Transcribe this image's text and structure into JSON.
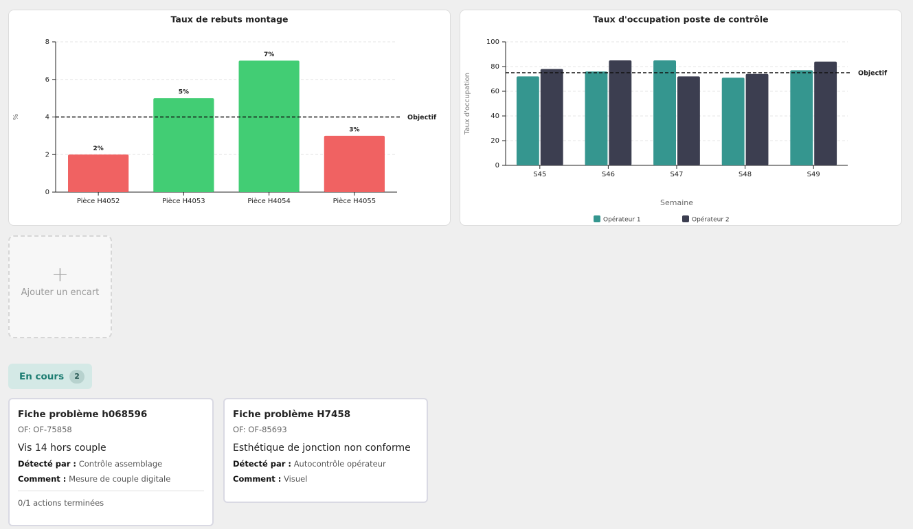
{
  "chart_data": [
    {
      "type": "bar",
      "title": "Taux de rebuts montage",
      "ylabel": "%",
      "categories": [
        "Pièce H4052",
        "Pièce H4053",
        "Pièce H4054",
        "Pièce H4055"
      ],
      "values": [
        2,
        5,
        7,
        3
      ],
      "value_labels": [
        "2%",
        "5%",
        "7%",
        "3%"
      ],
      "colors": [
        "#f06262",
        "#42cd74",
        "#42cd74",
        "#f06262"
      ],
      "ylim": [
        0,
        8
      ],
      "yticks": [
        0,
        2,
        4,
        6,
        8
      ],
      "grid": true,
      "target": {
        "value": 4,
        "label": "Objectif"
      }
    },
    {
      "type": "grouped_bar",
      "title": "Taux d'occupation poste de contrôle",
      "ylabel": "Taux d'occupation",
      "xlabel": "Semaine",
      "categories": [
        "S45",
        "S46",
        "S47",
        "S48",
        "S49"
      ],
      "series": [
        {
          "name": "Opérateur 1",
          "color": "#35968f",
          "values": [
            72,
            76,
            85,
            71,
            77
          ]
        },
        {
          "name": "Opérateur 2",
          "color": "#3c3e50",
          "values": [
            78,
            85,
            72,
            74,
            84
          ]
        }
      ],
      "ylim": [
        0,
        100
      ],
      "yticks": [
        0,
        20,
        40,
        60,
        80,
        100
      ],
      "grid": true,
      "legend": "bottom",
      "target": {
        "value": 75,
        "label": "Objectif"
      }
    }
  ],
  "add_card": {
    "label": "Ajouter un encart"
  },
  "section": {
    "title": "En cours",
    "count": 2
  },
  "cards": [
    {
      "title": "Fiche problème h068596",
      "of": "OF: OF-75858",
      "description": "Vis 14 hors couple",
      "detected_label": "Détecté par :",
      "detected": "Contrôle assemblage",
      "comment_label": "Comment :",
      "comment": "Mesure de couple digitale",
      "footer": "0/1 actions terminées"
    },
    {
      "title": "Fiche problème H7458",
      "of": "OF: OF-85693",
      "description": "Esthétique de jonction non conforme",
      "detected_label": "Détecté par :",
      "detected": "Autocontrôle opérateur",
      "comment_label": "Comment :",
      "comment": "Visuel"
    }
  ]
}
